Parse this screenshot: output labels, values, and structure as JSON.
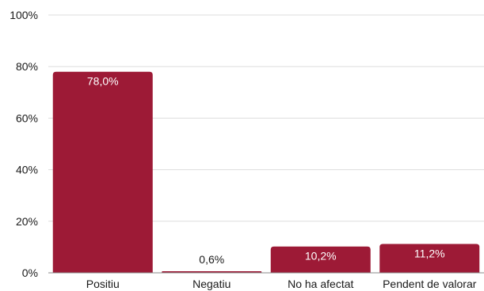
{
  "chart_data": {
    "type": "bar",
    "title": "",
    "xlabel": "",
    "ylabel": "",
    "categories": [
      "Positiu",
      "Negatiu",
      "No ha afectat",
      "Pendent de valorar"
    ],
    "values": [
      78.0,
      0.6,
      10.2,
      11.2
    ],
    "value_labels": [
      "78,0%",
      "0,6%",
      "10,2%",
      "11,2%"
    ],
    "ylim": [
      0,
      100
    ],
    "yticks": [
      {
        "value": 0,
        "label": "0%"
      },
      {
        "value": 20,
        "label": "20%"
      },
      {
        "value": 40,
        "label": "40%"
      },
      {
        "value": 60,
        "label": "60%"
      },
      {
        "value": 80,
        "label": "80%"
      },
      {
        "value": 100,
        "label": "100%"
      }
    ],
    "grid": true,
    "bar_color": "#9d1a36",
    "grid_color": "#dddddd",
    "axis_color": "#888888",
    "label_inside_color": "#ffffff",
    "label_outside_color": "#1a1a1a"
  }
}
